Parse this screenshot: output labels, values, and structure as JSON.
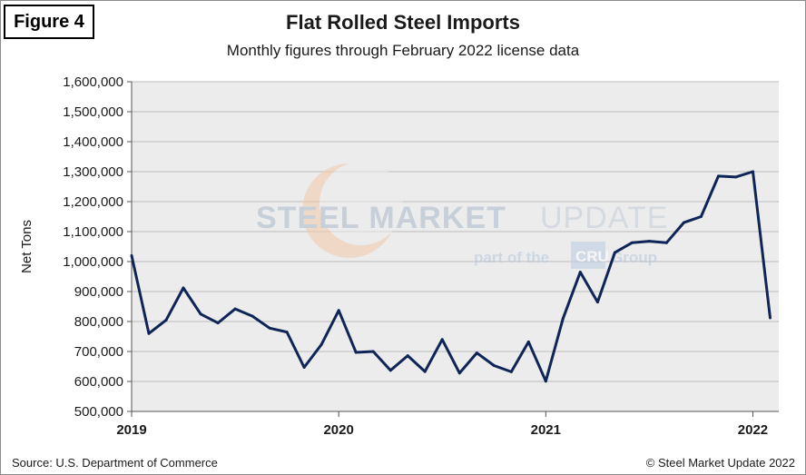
{
  "figure_label": "Figure 4",
  "footer": {
    "source": "Source: U.S. Department of Commerce",
    "copyright": "© Steel Market Update 2022"
  },
  "watermark": {
    "brand_steel_market": "STEEL MARKET",
    "brand_update": "UPDATE",
    "part_of": "part of the",
    "cru": "CRU",
    "group": "Group"
  },
  "colors": {
    "line": "#0f2557",
    "plot_background": "#ececec",
    "gridline": "#bdbdbd"
  },
  "chart_data": {
    "type": "line",
    "title": "Flat Rolled Steel Imports",
    "subtitle": "Monthly figures through February 2022 license data",
    "ylabel": "Net Tons",
    "xlabel": "",
    "ylim": [
      500000,
      1600000
    ],
    "y_ticks": [
      "500,000",
      "600,000",
      "700,000",
      "800,000",
      "900,000",
      "1,000,000",
      "1,100,000",
      "1,200,000",
      "1,300,000",
      "1,400,000",
      "1,500,000",
      "1,600,000"
    ],
    "x_tick_labels": [
      "2019",
      "2020",
      "2021",
      "2022"
    ],
    "x_tick_month_index": [
      0,
      12,
      24,
      36
    ],
    "grid": "horizontal",
    "legend": "none",
    "x": [
      "Jan 2019",
      "Feb 2019",
      "Mar 2019",
      "Apr 2019",
      "May 2019",
      "Jun 2019",
      "Jul 2019",
      "Aug 2019",
      "Sep 2019",
      "Oct 2019",
      "Nov 2019",
      "Dec 2019",
      "Jan 2020",
      "Feb 2020",
      "Mar 2020",
      "Apr 2020",
      "May 2020",
      "Jun 2020",
      "Jul 2020",
      "Aug 2020",
      "Sep 2020",
      "Oct 2020",
      "Nov 2020",
      "Dec 2020",
      "Jan 2021",
      "Feb 2021",
      "Mar 2021",
      "Apr 2021",
      "May 2021",
      "Jun 2021",
      "Jul 2021",
      "Aug 2021",
      "Sep 2021",
      "Oct 2021",
      "Nov 2021",
      "Dec 2021",
      "Jan 2022",
      "Feb 2022"
    ],
    "values": [
      1020000,
      760000,
      805000,
      912000,
      825000,
      795000,
      842000,
      818000,
      778000,
      765000,
      647000,
      723000,
      837000,
      697000,
      700000,
      637000,
      686000,
      633000,
      740000,
      628000,
      695000,
      653000,
      632000,
      732000,
      601000,
      810000,
      965000,
      865000,
      1030000,
      1063000,
      1068000,
      1063000,
      1130000,
      1150000,
      1285000,
      1282000,
      1300000,
      812000
    ]
  }
}
